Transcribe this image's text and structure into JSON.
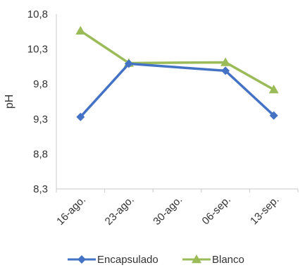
{
  "chart_data": {
    "type": "line",
    "categories": [
      "16-ago.",
      "23-ago.",
      "30-ago.",
      "06-sep.",
      "13-sep."
    ],
    "x_positions": [
      0,
      1,
      2,
      3,
      4
    ],
    "series": [
      {
        "name": "Encapsulado",
        "x": [
          0,
          1,
          3,
          4
        ],
        "values": [
          9.33,
          10.09,
          9.99,
          9.35
        ],
        "color": "#4472C4",
        "marker": "diamond"
      },
      {
        "name": "Blanco",
        "x": [
          0,
          1,
          3,
          4
        ],
        "values": [
          10.56,
          10.1,
          10.11,
          9.72
        ],
        "color": "#9BBB59",
        "marker": "triangle"
      }
    ],
    "ylabel": "pH",
    "xlabel": "",
    "ylim": [
      8.3,
      10.8
    ],
    "yticks": [
      "8,3",
      "8,8",
      "9,3",
      "9,8",
      "10,3",
      "10,8"
    ],
    "ytick_values": [
      8.3,
      8.8,
      9.3,
      9.8,
      10.3,
      10.8
    ],
    "grid": false,
    "legend_position": "bottom"
  }
}
